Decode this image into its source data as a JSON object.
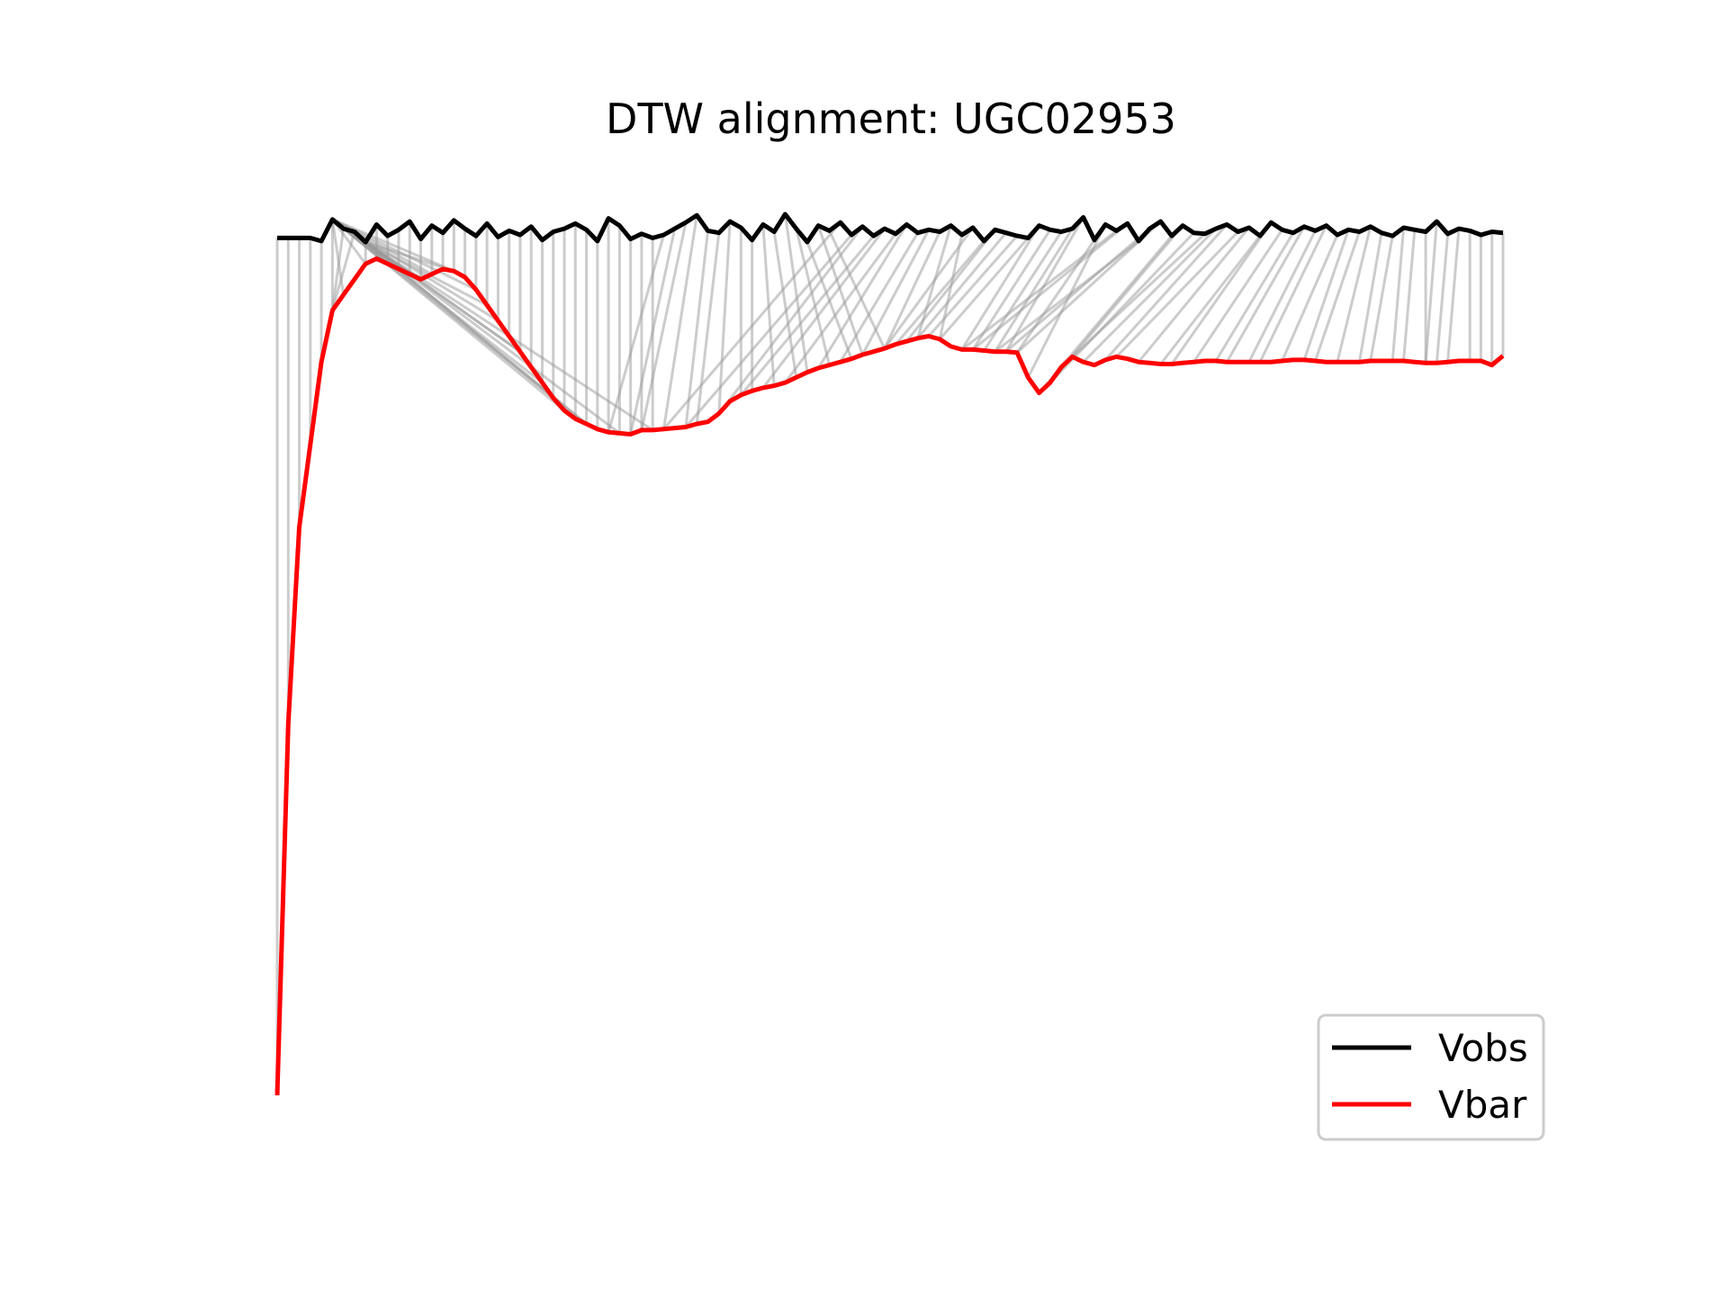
{
  "chart_data": {
    "type": "line",
    "title": "DTW alignment: UGC02953",
    "xlabel": "",
    "ylabel": "",
    "grid": false,
    "axes_visible": false,
    "legend_position": "lower-right",
    "colors": {
      "vobs": "#000000",
      "vbar": "#ff0000",
      "connector": "#9a9a9a"
    },
    "series": [
      {
        "name": "Vobs",
        "color": "#000000",
        "y": [
          0.0,
          0.0,
          0.0,
          0.0,
          -0.3,
          1.8,
          0.9,
          0.6,
          -0.4,
          1.3,
          0.2,
          0.8,
          1.6,
          -0.1,
          1.2,
          0.5,
          1.7,
          0.9,
          0.2,
          1.4,
          0.1,
          0.7,
          0.3,
          1.1,
          -0.2,
          0.6,
          0.9,
          1.4,
          0.8,
          -0.3,
          1.9,
          1.2,
          -0.1,
          0.4,
          0.0,
          0.3,
          0.9,
          1.5,
          2.2,
          0.7,
          0.5,
          1.6,
          1.0,
          -0.2,
          1.3,
          0.6,
          2.3,
          0.9,
          -0.4,
          1.2,
          0.7,
          1.5,
          0.3,
          1.1,
          0.2,
          0.9,
          0.4,
          1.3,
          0.5,
          0.8,
          0.6,
          1.2,
          0.3,
          1.0,
          -0.3,
          0.8,
          0.5,
          0.2,
          0.0,
          1.2,
          0.8,
          0.6,
          0.9,
          2.0,
          -0.2,
          1.3,
          0.7,
          1.4,
          -0.3,
          0.9,
          1.6,
          0.2,
          1.2,
          0.5,
          0.4,
          0.9,
          1.3,
          0.6,
          1.0,
          0.2,
          1.5,
          0.8,
          0.5,
          1.1,
          0.7,
          1.2,
          0.3,
          0.8,
          0.6,
          1.1,
          0.5,
          0.2,
          1.0,
          0.8,
          0.6,
          1.6,
          0.4,
          0.9,
          0.7,
          0.3,
          0.6,
          0.5
        ]
      },
      {
        "name": "Vbar",
        "color": "#ff0000",
        "y": [
          -83.0,
          -47.0,
          -28.0,
          -20.0,
          -12.0,
          -7.0,
          -5.5,
          -4.0,
          -2.5,
          -2.0,
          -2.5,
          -3.0,
          -3.5,
          -4.0,
          -3.5,
          -3.0,
          -3.2,
          -3.8,
          -5.0,
          -6.5,
          -8.0,
          -9.5,
          -11.0,
          -12.5,
          -14.0,
          -15.5,
          -16.7,
          -17.5,
          -18.0,
          -18.5,
          -18.8,
          -18.9,
          -19.0,
          -18.6,
          -18.6,
          -18.5,
          -18.4,
          -18.3,
          -18.0,
          -17.8,
          -17.0,
          -15.8,
          -15.2,
          -14.8,
          -14.5,
          -14.3,
          -14.0,
          -13.5,
          -13.0,
          -12.6,
          -12.3,
          -12.0,
          -11.7,
          -11.3,
          -11.0,
          -10.7,
          -10.3,
          -10.0,
          -9.7,
          -9.5,
          -9.8,
          -10.5,
          -10.8,
          -10.8,
          -10.9,
          -11.0,
          -11.0,
          -11.1,
          -13.5,
          -15.0,
          -14.0,
          -12.5,
          -11.5,
          -12.0,
          -12.3,
          -11.8,
          -11.5,
          -11.7,
          -12.0,
          -12.1,
          -12.2,
          -12.2,
          -12.1,
          -12.0,
          -11.9,
          -11.9,
          -12.0,
          -12.0,
          -12.0,
          -12.0,
          -12.0,
          -11.9,
          -11.8,
          -11.8,
          -11.9,
          -12.0,
          -12.0,
          -12.0,
          -12.0,
          -11.9,
          -11.9,
          -11.9,
          -11.9,
          -12.0,
          -12.1,
          -12.1,
          -12.0,
          -11.9,
          -11.9,
          -11.9,
          -12.3,
          -11.4
        ]
      }
    ],
    "ylim": [
      -85,
      3
    ]
  }
}
